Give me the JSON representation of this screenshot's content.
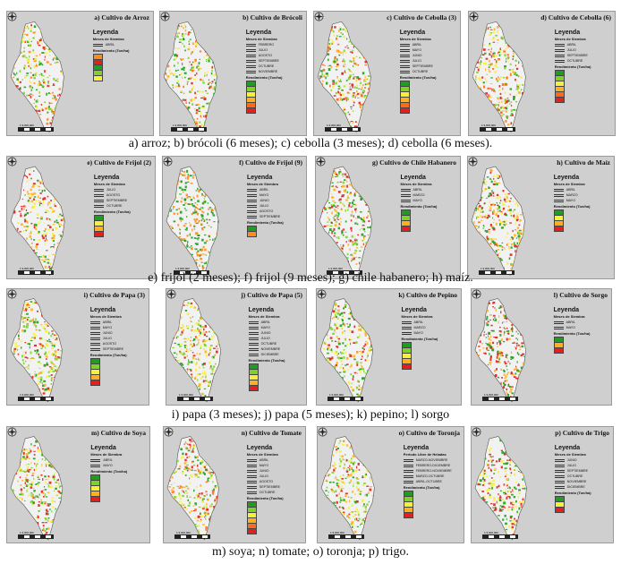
{
  "rows": [
    {
      "caption": "a) arroz; b) brócoli (6 meses); c) cebolla (3 meses); d) cebolla (6 meses).",
      "panels": [
        {
          "title": "a) Cultivo de Arroz",
          "legend_title": "Leyenda",
          "sowing_title": "Meses de Siembra",
          "sowing": [
            "ABRIL"
          ],
          "yield_title": "Rendimiento (Ton/ha)",
          "yield_classes": [
            "",
            "",
            "",
            "",
            ""
          ],
          "colors": [
            "#ff8c1a",
            "#e22020",
            "#1e9e1e",
            "#7fd12a",
            "#f5f03a"
          ]
        },
        {
          "title": "b) Cultivo de Brócoli",
          "legend_title": "Leyenda",
          "sowing_title": "Meses de Siembra",
          "sowing": [
            "FEBRERO",
            "JULIO",
            "AGOSTO",
            "SEPTIEMBRE",
            "OCTUBRE",
            "NOVIEMBRE"
          ],
          "yield_title": "Rendimiento (Ton/ha)",
          "yield_classes": [
            "",
            "",
            "",
            "",
            "",
            ""
          ],
          "colors": [
            "#1e9e1e",
            "#7fd12a",
            "#f5f03a",
            "#ffb020",
            "#ff6a1a",
            "#e22020"
          ]
        },
        {
          "title": "c) Cultivo de Cebolla (3)",
          "legend_title": "Leyenda",
          "sowing_title": "Meses de Siembra",
          "sowing": [
            "ABRIL",
            "MAYO",
            "JUNIO",
            "JULIO",
            "SEPTIEMBRE",
            "OCTUBRE"
          ],
          "yield_title": "Rendimiento (Ton/ha)",
          "yield_classes": [
            "",
            "",
            "",
            "",
            "",
            ""
          ],
          "colors": [
            "#1e9e1e",
            "#7fd12a",
            "#f5f03a",
            "#ffb020",
            "#ff6a1a",
            "#e22020"
          ]
        },
        {
          "title": "d) Cultivo de Cebolla (6)",
          "legend_title": "Leyenda",
          "sowing_title": "Meses de Siembra",
          "sowing": [
            "ABRIL",
            "JULIO",
            "SEPTIEMBRE",
            "OCTUBRE"
          ],
          "yield_title": "Rendimiento (Ton/ha)",
          "yield_classes": [
            "",
            "",
            "",
            "",
            "",
            ""
          ],
          "colors": [
            "#1e9e1e",
            "#7fd12a",
            "#f5f03a",
            "#ffb020",
            "#ff6a1a",
            "#e22020"
          ]
        }
      ]
    },
    {
      "caption": "e) frijol (2 meses); f) frijol (9 meses); g) chile habanero; h) maíz.",
      "panels": [
        {
          "title": "e) Cultivo de Frijol (2)",
          "legend_title": "Leyenda",
          "sowing_title": "Meses de Siembra",
          "sowing": [
            "JULIO",
            "AGOSTO",
            "SEPTIEMBRE",
            "OCTUBRE"
          ],
          "yield_title": "Rendimiento (Ton/ha)",
          "yield_classes": [
            "",
            "",
            "",
            ""
          ],
          "colors": [
            "#1e9e1e",
            "#f5f03a",
            "#ffb020",
            "#e22020"
          ]
        },
        {
          "title": "f) Cultivo de Frijol (9)",
          "legend_title": "Leyenda",
          "sowing_title": "Meses de Siembra",
          "sowing": [
            "ABRIL",
            "MAYO",
            "JUNIO",
            "JULIO",
            "AGOSTO",
            "SEPTIEMBRE"
          ],
          "yield_title": "Rendimiento (Ton/ha)",
          "yield_classes": [
            "",
            ""
          ],
          "colors": [
            "#1e9e1e",
            "#ff8c1a"
          ]
        },
        {
          "title": "g) Cultivo de Chile Habanero",
          "legend_title": "Leyenda",
          "sowing_title": "Meses de Siembra",
          "sowing": [
            "ABRIL",
            "MARZO",
            "MAYO"
          ],
          "yield_title": "Rendimiento (Ton/ha)",
          "yield_classes": [
            "",
            "",
            "",
            ""
          ],
          "colors": [
            "#1e9e1e",
            "#7fd12a",
            "#ffb020",
            "#e22020"
          ]
        },
        {
          "title": "h) Cultivo de Maíz",
          "legend_title": "Leyenda",
          "sowing_title": "Meses de Siembra",
          "sowing": [
            "ABRIL",
            "MARZO",
            "MAYO"
          ],
          "yield_title": "Rendimiento (Ton/ha)",
          "yield_classes": [
            "",
            "",
            "",
            ""
          ],
          "colors": [
            "#1e9e1e",
            "#f5f03a",
            "#ffb020",
            "#e22020"
          ]
        }
      ]
    },
    {
      "caption": "i) papa (3 meses); j) papa (5 meses); k) pepino; l) sorgo",
      "panels": [
        {
          "title": "i) Cultivo de Papa (3)",
          "legend_title": "Leyenda",
          "sowing_title": "Meses de Siembra",
          "sowing": [
            "ABRIL",
            "MAYO",
            "JUNIO",
            "JULIO",
            "AGOSTO",
            "SEPTIEMBRE"
          ],
          "yield_title": "Rendimiento (Ton/ha)",
          "yield_classes": [
            "",
            "",
            "",
            "",
            ""
          ],
          "colors": [
            "#1e9e1e",
            "#7fd12a",
            "#f5f03a",
            "#ffb020",
            "#e22020"
          ]
        },
        {
          "title": "j) Cultivo de Papa (5)",
          "legend_title": "Leyenda",
          "sowing_title": "Meses de Siembra",
          "sowing": [
            "ABRIL",
            "MAYO",
            "JUNIO",
            "JULIO",
            "OCTUBRE",
            "NOVIEMBRE",
            "DICIEMBRE"
          ],
          "yield_title": "Rendimiento (Ton/ha)",
          "yield_classes": [
            "",
            "",
            "",
            "",
            ""
          ],
          "colors": [
            "#1e9e1e",
            "#7fd12a",
            "#f5f03a",
            "#ffb020",
            "#e22020"
          ]
        },
        {
          "title": "k) Cultivo de Pepino",
          "legend_title": "Leyenda",
          "sowing_title": "Meses de Siembra",
          "sowing": [
            "ABRIL",
            "MARZO",
            "MAYO"
          ],
          "yield_title": "Rendimiento (Ton/ha)",
          "yield_classes": [
            "",
            "",
            "",
            "",
            ""
          ],
          "colors": [
            "#1e9e1e",
            "#7fd12a",
            "#f5f03a",
            "#ffb020",
            "#e22020"
          ]
        },
        {
          "title": "l) Cultivo de Sorgo",
          "legend_title": "Leyenda",
          "sowing_title": "Meses de Siembra",
          "sowing": [
            "ABRIL",
            "MAYO"
          ],
          "yield_title": "Rendimiento (Ton/ha)",
          "yield_classes": [
            "",
            "",
            ""
          ],
          "colors": [
            "#1e9e1e",
            "#ffb020",
            "#e22020"
          ]
        }
      ]
    },
    {
      "caption": "m) soya; n) tomate; o) toronja; p) trigo.",
      "panels": [
        {
          "title": "m) Cultivo de Soya",
          "legend_title": "Leyenda",
          "sowing_title": "Meses de Siembra",
          "sowing": [
            "ABRIL",
            "MAYO"
          ],
          "yield_title": "Rendimiento (Ton/ha)",
          "yield_classes": [
            "",
            "",
            "",
            "",
            ""
          ],
          "colors": [
            "#1e9e1e",
            "#7fd12a",
            "#f5f03a",
            "#ffb020",
            "#e22020"
          ]
        },
        {
          "title": "n) Cultivo de Tomate",
          "legend_title": "Leyenda",
          "sowing_title": "Meses de Siembra",
          "sowing": [
            "ABRIL",
            "MAYO",
            "JUNIO",
            "JULIO",
            "AGOSTO",
            "SEPTIEMBRE",
            "OCTUBRE"
          ],
          "yield_title": "Rendimiento (Ton/ha)",
          "yield_classes": [
            "",
            "",
            "",
            "",
            "",
            ""
          ],
          "colors": [
            "#1e9e1e",
            "#7fd12a",
            "#f5f03a",
            "#ffb020",
            "#ff6a1a",
            "#e22020"
          ]
        },
        {
          "title": "o) Cultivo de Toronja",
          "legend_title": "Leyenda",
          "sowing_title": "Periodo Libre de Heladas",
          "sowing": [
            "MARZO-NOVIEMBRE",
            "FEBRERO-DICIEMBRE",
            "FEBRERO-NOVIEMBRE",
            "MARZO-OCTUBRE",
            "ABRIL-OCTUBRE"
          ],
          "yield_title": "Rendimiento (Ton/ha)",
          "yield_classes": [
            "",
            "",
            "",
            "",
            ""
          ],
          "colors": [
            "#1e9e1e",
            "#7fd12a",
            "#f5f03a",
            "#ffb020",
            "#e22020"
          ]
        },
        {
          "title": "p) Cultivo de Trigo",
          "legend_title": "Leyenda",
          "sowing_title": "Meses de Siembra",
          "sowing": [
            "JUNIO",
            "JULIO",
            "SEPTIEMBRE",
            "OCTUBRE",
            "NOVIEMBRE",
            "DICIEMBRE"
          ],
          "yield_title": "Rendimiento (Ton/ha)",
          "yield_classes": [
            "",
            "",
            ""
          ],
          "colors": [
            "#1e9e1e",
            "#f5f03a",
            "#e22020"
          ]
        }
      ]
    }
  ],
  "scale_text": "1:3,000,000"
}
